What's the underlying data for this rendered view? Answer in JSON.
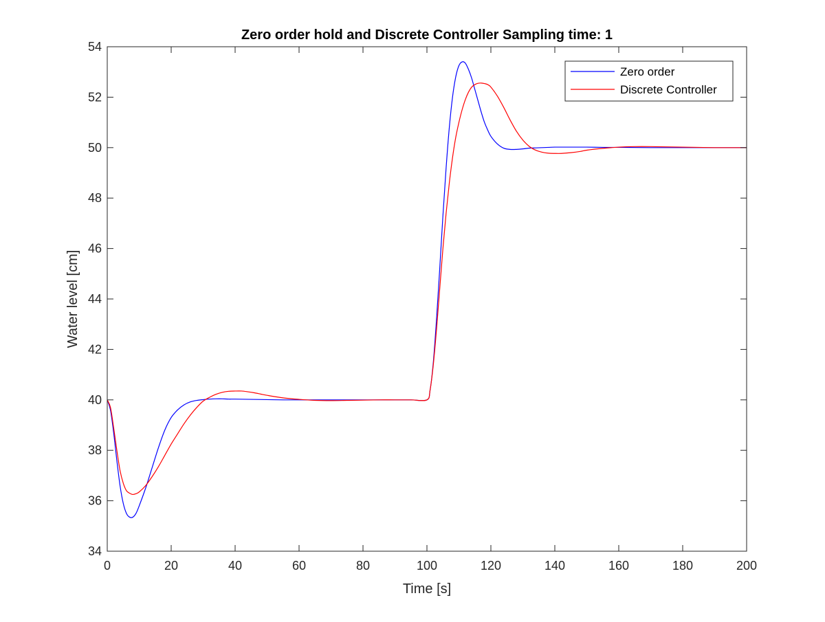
{
  "chart_data": {
    "type": "line",
    "title": "Zero order hold and Discrete Controller Sampling time: 1",
    "xlabel": "Time [s]",
    "ylabel": "Water level [cm]",
    "xlim": [
      0,
      200
    ],
    "ylim": [
      34,
      54
    ],
    "xticks": [
      0,
      20,
      40,
      60,
      80,
      100,
      120,
      140,
      160,
      180,
      200
    ],
    "yticks": [
      34,
      36,
      38,
      40,
      42,
      44,
      46,
      48,
      50,
      52,
      54
    ],
    "grid": false,
    "legend_position": "top-right",
    "series": [
      {
        "name": "Zero order",
        "color": "#0000ff",
        "x": [
          0,
          1,
          2,
          3,
          4,
          5,
          6,
          7,
          8,
          9,
          10,
          12,
          14,
          16,
          18,
          20,
          22,
          24,
          26,
          28,
          30,
          32,
          34,
          36,
          38,
          40,
          45,
          50,
          55,
          60,
          65,
          70,
          75,
          80,
          85,
          90,
          95,
          100,
          101,
          102,
          103,
          104,
          105,
          106,
          107,
          108,
          109,
          110,
          111,
          112,
          113,
          114,
          115,
          116,
          117,
          118,
          119,
          120,
          122,
          124,
          126,
          128,
          130,
          132,
          134,
          136,
          138,
          140,
          145,
          150,
          155,
          160,
          170,
          180,
          190,
          200
        ],
        "y": [
          40.0,
          39.6,
          38.7,
          37.6,
          36.6,
          35.9,
          35.5,
          35.35,
          35.35,
          35.5,
          35.8,
          36.5,
          37.3,
          38.1,
          38.8,
          39.3,
          39.6,
          39.8,
          39.92,
          39.98,
          40.01,
          40.03,
          40.04,
          40.04,
          40.03,
          40.03,
          40.02,
          40.01,
          40.0,
          40.0,
          40.0,
          40.0,
          40.0,
          40.0,
          40.0,
          40.0,
          40.0,
          40.0,
          40.4,
          41.5,
          43.2,
          45.2,
          47.3,
          49.2,
          50.8,
          52.0,
          52.8,
          53.25,
          53.4,
          53.35,
          53.1,
          52.75,
          52.3,
          51.85,
          51.4,
          51.0,
          50.7,
          50.45,
          50.15,
          49.98,
          49.93,
          49.93,
          49.95,
          49.98,
          49.99,
          50.0,
          50.01,
          50.02,
          50.02,
          50.02,
          50.01,
          50.01,
          50.0,
          50.0,
          50.0,
          50.0
        ]
      },
      {
        "name": "Discrete Controller",
        "color": "#ff0000",
        "x": [
          0,
          1,
          2,
          3,
          4,
          5,
          6,
          7,
          8,
          9,
          10,
          12,
          14,
          16,
          18,
          20,
          22,
          24,
          26,
          28,
          30,
          32,
          34,
          36,
          38,
          40,
          42,
          44,
          46,
          48,
          50,
          55,
          60,
          65,
          70,
          75,
          80,
          85,
          90,
          95,
          100,
          101,
          102,
          103,
          104,
          105,
          106,
          107,
          108,
          109,
          110,
          111,
          112,
          113,
          114,
          115,
          116,
          117,
          118,
          119,
          120,
          122,
          124,
          126,
          128,
          130,
          132,
          134,
          136,
          138,
          140,
          142,
          145,
          148,
          150,
          155,
          160,
          165,
          170,
          175,
          180,
          185,
          190,
          200
        ],
        "y": [
          40.0,
          39.7,
          38.9,
          38.0,
          37.2,
          36.7,
          36.4,
          36.3,
          36.25,
          36.28,
          36.35,
          36.6,
          36.95,
          37.35,
          37.8,
          38.25,
          38.65,
          39.05,
          39.4,
          39.7,
          39.95,
          40.1,
          40.22,
          40.3,
          40.34,
          40.35,
          40.35,
          40.32,
          40.28,
          40.23,
          40.18,
          40.08,
          40.02,
          39.98,
          39.97,
          39.98,
          39.99,
          40.0,
          40.0,
          40.0,
          40.0,
          40.4,
          41.4,
          42.8,
          44.4,
          46.0,
          47.4,
          48.6,
          49.6,
          50.4,
          51.0,
          51.5,
          51.9,
          52.2,
          52.4,
          52.5,
          52.55,
          52.56,
          52.54,
          52.5,
          52.4,
          52.05,
          51.6,
          51.1,
          50.65,
          50.3,
          50.05,
          49.9,
          49.82,
          49.78,
          49.77,
          49.77,
          49.8,
          49.85,
          49.9,
          49.97,
          50.02,
          50.04,
          50.04,
          50.03,
          50.02,
          50.01,
          50.0,
          50.0
        ]
      }
    ]
  }
}
